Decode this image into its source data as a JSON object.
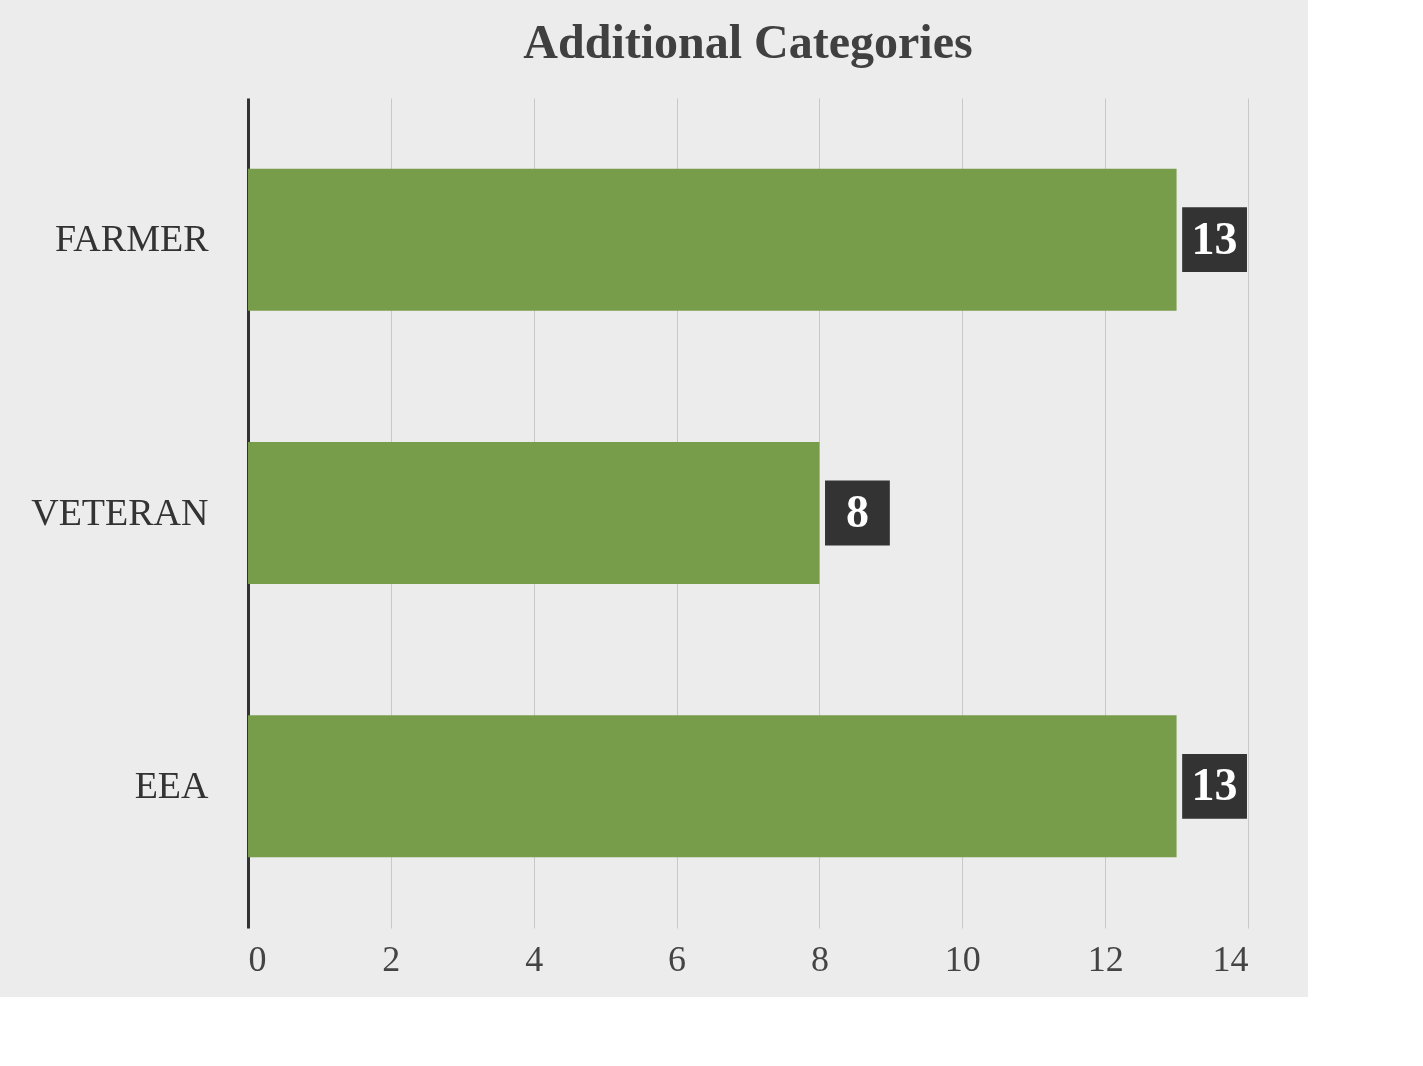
{
  "chart_data": {
    "type": "bar",
    "orientation": "horizontal",
    "title": "Additional Categories",
    "categories": [
      "FARMER",
      "VETERAN",
      "EEA"
    ],
    "values": [
      13,
      8,
      13
    ],
    "color": "#789d4a",
    "xlim": [
      0,
      14
    ],
    "xticks": [
      0,
      2,
      4,
      6,
      8,
      10,
      12,
      14
    ],
    "grid": "x",
    "data_labels": true
  }
}
